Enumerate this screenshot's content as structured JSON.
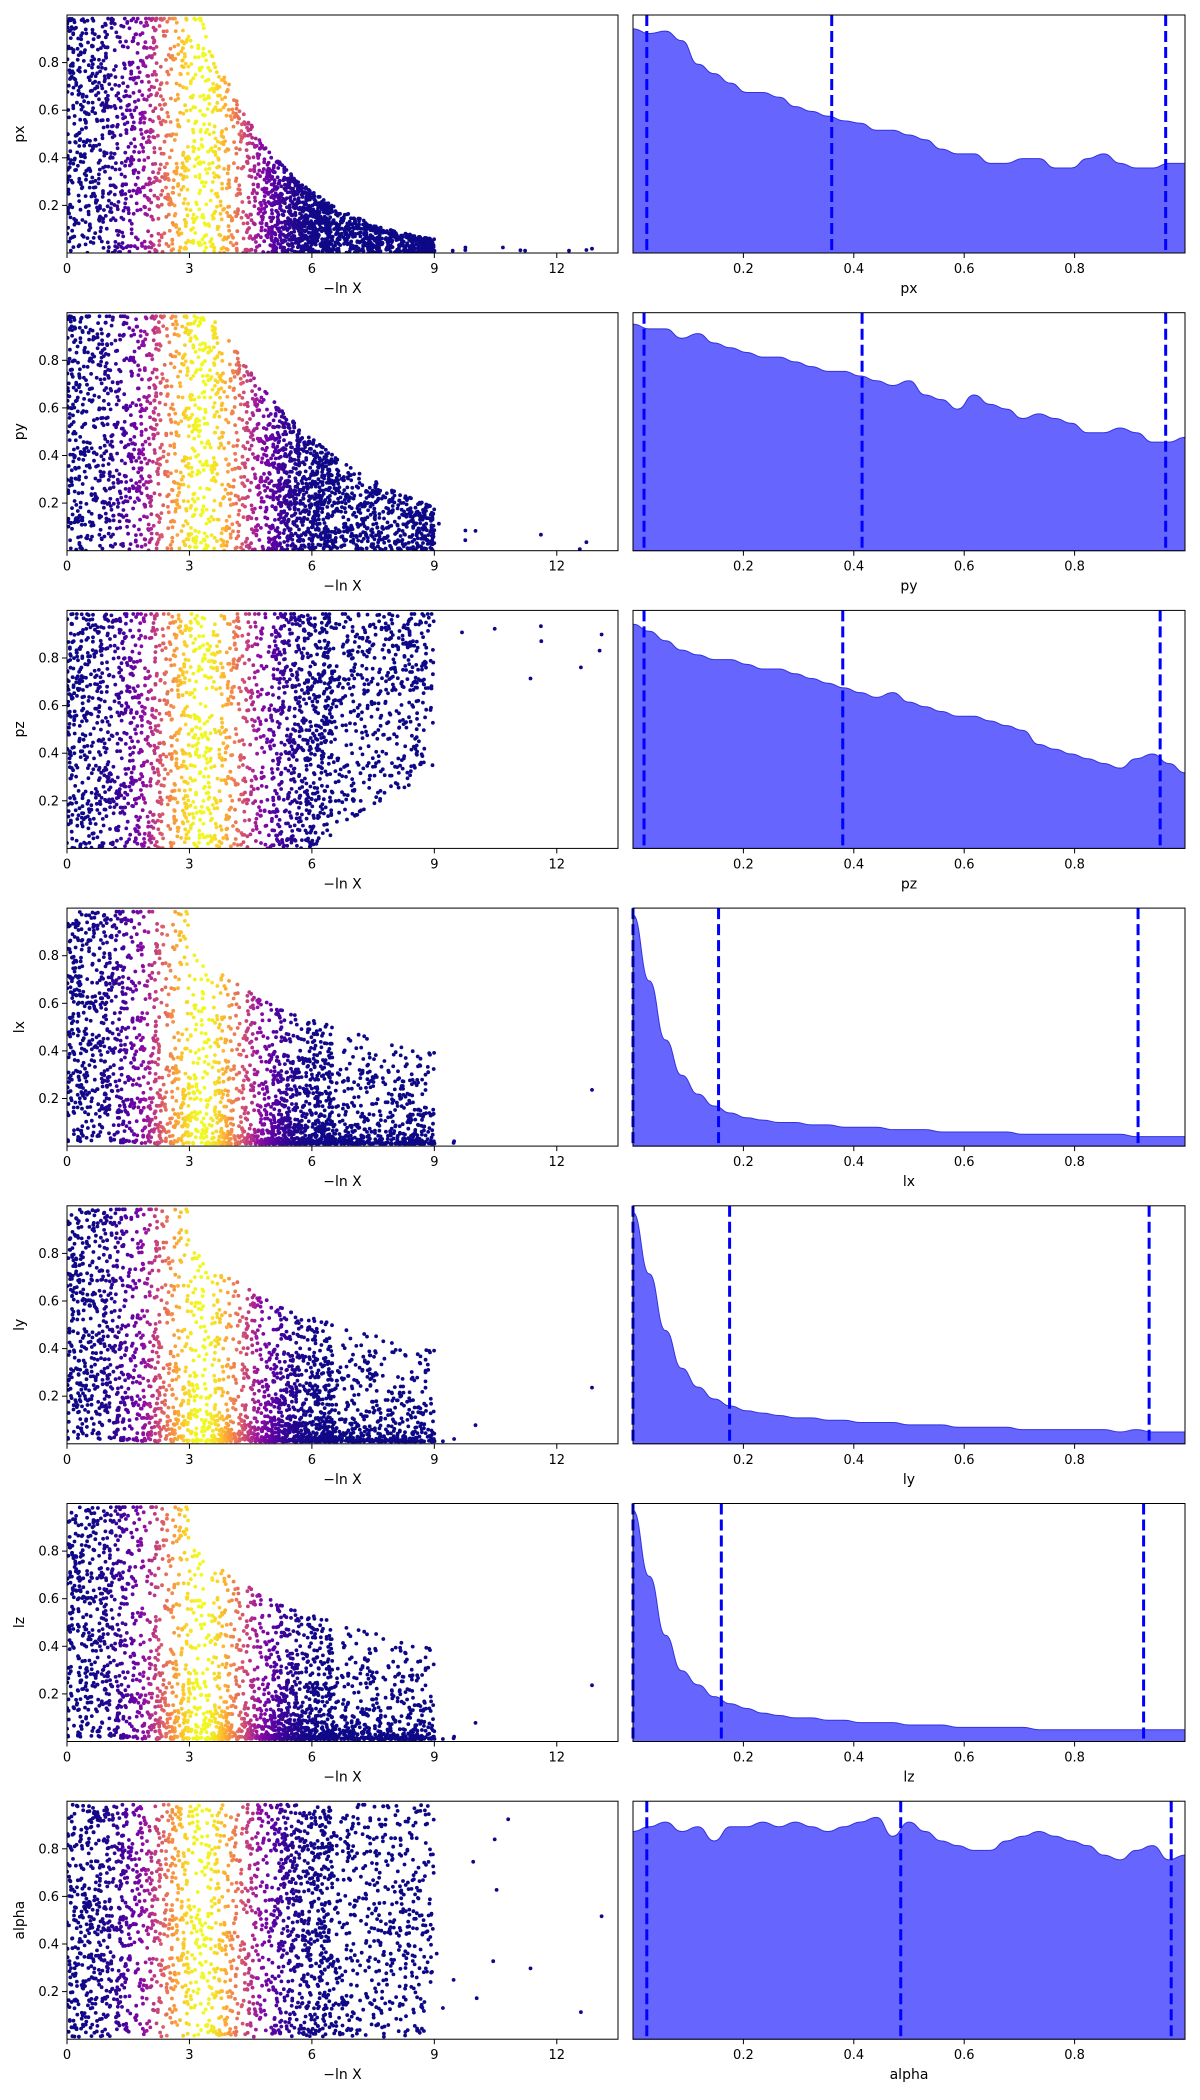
{
  "chart_data": {
    "type": "scatter",
    "trace_xlabel": "−ln X",
    "trace_xlim": [
      0,
      13.5
    ],
    "trace_xticks": [
      0,
      3,
      6,
      9,
      12
    ],
    "trace_xticklabels": [
      "0",
      "3",
      "6",
      "9",
      "12"
    ],
    "param_ylim": [
      0,
      1
    ],
    "param_ticks": [
      0.2,
      0.4,
      0.6,
      0.8
    ],
    "param_ticklabels": [
      "0.2",
      "0.4",
      "0.6",
      "0.8"
    ],
    "trace_point_color_map": "plasma",
    "posterior_fill_color": "#6666ff",
    "quantile_line_color": "#0000ff",
    "params": [
      {
        "name": "px",
        "quantiles": [
          0.025,
          0.36,
          0.965
        ],
        "density": [
          0.95,
          0.93,
          0.94,
          0.9,
          0.8,
          0.76,
          0.72,
          0.68,
          0.68,
          0.66,
          0.62,
          0.6,
          0.58,
          0.56,
          0.55,
          0.52,
          0.52,
          0.5,
          0.48,
          0.44,
          0.42,
          0.42,
          0.38,
          0.38,
          0.4,
          0.4,
          0.36,
          0.36,
          0.4,
          0.42,
          0.38,
          0.36,
          0.36,
          0.38,
          0.38
        ],
        "trace_shape": "decreasing"
      },
      {
        "name": "py",
        "quantiles": [
          0.02,
          0.415,
          0.965
        ],
        "density": [
          0.96,
          0.94,
          0.94,
          0.9,
          0.92,
          0.88,
          0.86,
          0.84,
          0.82,
          0.82,
          0.8,
          0.78,
          0.76,
          0.76,
          0.74,
          0.72,
          0.7,
          0.72,
          0.66,
          0.64,
          0.6,
          0.66,
          0.62,
          0.6,
          0.56,
          0.58,
          0.56,
          0.54,
          0.5,
          0.5,
          0.52,
          0.5,
          0.46,
          0.46,
          0.48
        ],
        "trace_shape": "decreasing-slow"
      },
      {
        "name": "pz",
        "quantiles": [
          0.02,
          0.38,
          0.955
        ],
        "density": [
          0.95,
          0.92,
          0.88,
          0.84,
          0.82,
          0.8,
          0.8,
          0.78,
          0.76,
          0.76,
          0.74,
          0.72,
          0.7,
          0.68,
          0.66,
          0.64,
          0.66,
          0.62,
          0.6,
          0.58,
          0.56,
          0.56,
          0.54,
          0.52,
          0.5,
          0.44,
          0.42,
          0.4,
          0.38,
          0.36,
          0.34,
          0.38,
          0.4,
          0.36,
          0.32
        ],
        "trace_shape": "increasing"
      },
      {
        "name": "lx",
        "quantiles": [
          0.0,
          0.155,
          0.915
        ],
        "density": [
          0.98,
          0.7,
          0.45,
          0.3,
          0.22,
          0.17,
          0.14,
          0.12,
          0.11,
          0.1,
          0.1,
          0.09,
          0.09,
          0.08,
          0.08,
          0.08,
          0.07,
          0.07,
          0.07,
          0.06,
          0.06,
          0.06,
          0.06,
          0.06,
          0.05,
          0.05,
          0.05,
          0.05,
          0.05,
          0.05,
          0.05,
          0.04,
          0.04,
          0.04,
          0.04
        ],
        "trace_shape": "skewed-low"
      },
      {
        "name": "ly",
        "quantiles": [
          0.0,
          0.175,
          0.935
        ],
        "density": [
          0.98,
          0.72,
          0.48,
          0.32,
          0.24,
          0.19,
          0.16,
          0.14,
          0.13,
          0.12,
          0.11,
          0.11,
          0.1,
          0.1,
          0.09,
          0.09,
          0.09,
          0.08,
          0.08,
          0.08,
          0.07,
          0.07,
          0.07,
          0.07,
          0.06,
          0.06,
          0.06,
          0.06,
          0.06,
          0.06,
          0.05,
          0.06,
          0.05,
          0.05,
          0.05
        ],
        "trace_shape": "skewed-low"
      },
      {
        "name": "lz",
        "quantiles": [
          0.0,
          0.16,
          0.925
        ],
        "density": [
          0.98,
          0.7,
          0.45,
          0.3,
          0.24,
          0.19,
          0.16,
          0.14,
          0.12,
          0.11,
          0.1,
          0.1,
          0.09,
          0.09,
          0.08,
          0.08,
          0.08,
          0.07,
          0.07,
          0.07,
          0.06,
          0.06,
          0.06,
          0.06,
          0.06,
          0.05,
          0.05,
          0.05,
          0.05,
          0.05,
          0.05,
          0.05,
          0.05,
          0.05,
          0.05
        ],
        "trace_shape": "skewed-low"
      },
      {
        "name": "alpha",
        "quantiles": [
          0.025,
          0.485,
          0.975
        ],
        "density": [
          0.88,
          0.9,
          0.92,
          0.88,
          0.9,
          0.84,
          0.9,
          0.9,
          0.92,
          0.9,
          0.92,
          0.9,
          0.88,
          0.9,
          0.92,
          0.94,
          0.86,
          0.92,
          0.88,
          0.84,
          0.82,
          0.8,
          0.8,
          0.84,
          0.86,
          0.88,
          0.86,
          0.84,
          0.82,
          0.78,
          0.76,
          0.8,
          0.82,
          0.76,
          0.78
        ],
        "trace_shape": "uniform"
      }
    ]
  }
}
